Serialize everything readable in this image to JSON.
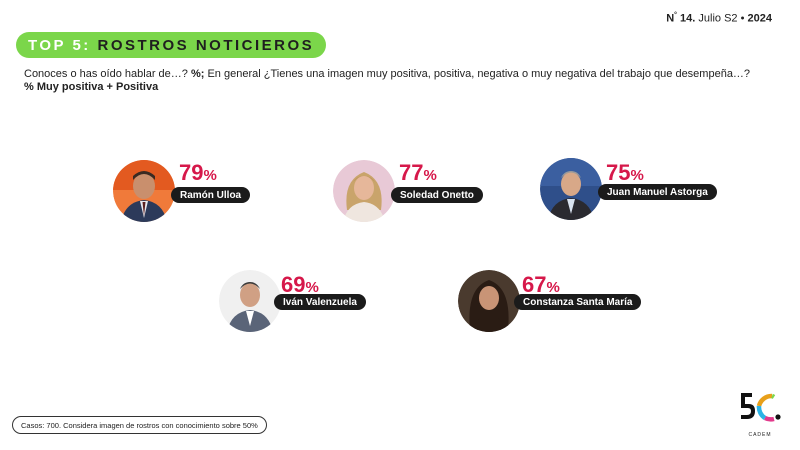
{
  "header": {
    "edition_symbol": "N",
    "edition_sup": "°",
    "edition_number": "14.",
    "edition_period": "Julio S2",
    "edition_sep": "•",
    "edition_year": "2024"
  },
  "title": {
    "part1": "TOP 5:",
    "part2": "ROSTROS NOTICIEROS"
  },
  "question": {
    "q1": "Conoces o has oído hablar de…?",
    "symbol": "%;",
    "q2": "En general ¿Tienes una imagen muy positiva, positiva, negativa o muy negativa del trabajo que desempeña…?",
    "metric": "% Muy positiva + Positiva"
  },
  "chart_data": {
    "type": "bar",
    "title": "TOP 5: ROSTROS NOTICIEROS",
    "categories": [
      "Ramón Ulloa",
      "Soledad Onetto",
      "Juan Manuel Astorga",
      "Iván Valenzuela",
      "Constanza Santa María"
    ],
    "values": [
      79,
      77,
      75,
      69,
      67
    ],
    "unit": "%"
  },
  "footnote": "Casos: 700. Considera imagen de rostros con conocimiento sobre 50%",
  "logo": {
    "text": "CADEM"
  },
  "colors": {
    "accent_green": "#7bd64a",
    "percent_red": "#d6184a",
    "name_pill": "#1b1b1b"
  },
  "icons": [
    "portrait-ramon-ulloa",
    "portrait-soledad-onetto",
    "portrait-juan-manuel-astorga",
    "portrait-ivan-valenzuela",
    "portrait-constanza-santa-maria",
    "cadem-logo"
  ]
}
